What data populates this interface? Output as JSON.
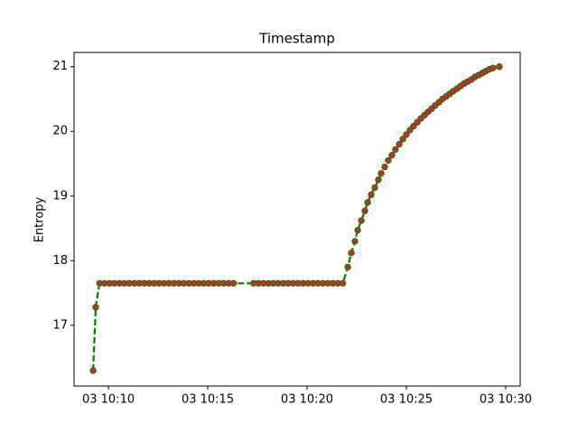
{
  "chart_data": {
    "type": "line",
    "title": "Timestamp",
    "y_label": "Entropy",
    "x": [
      9.23,
      9.36,
      9.55,
      9.8,
      10.05,
      10.3,
      10.55,
      10.8,
      11.05,
      11.3,
      11.55,
      11.8,
      12.05,
      12.3,
      12.55,
      12.8,
      13.05,
      13.3,
      13.55,
      13.8,
      14.05,
      14.3,
      14.55,
      14.8,
      15.05,
      15.3,
      15.55,
      15.8,
      16.05,
      16.3,
      17.3,
      17.55,
      17.8,
      18.05,
      18.3,
      18.55,
      18.8,
      19.05,
      19.3,
      19.55,
      19.8,
      20.05,
      20.3,
      20.55,
      20.8,
      21.05,
      21.3,
      21.55,
      21.8,
      22.05,
      22.23,
      22.41,
      22.55,
      22.73,
      22.91,
      23.05,
      23.23,
      23.41,
      23.59,
      23.73,
      23.91,
      24.09,
      24.27,
      24.45,
      24.64,
      24.82,
      25.0,
      25.18,
      25.36,
      25.55,
      25.73,
      25.91,
      26.09,
      26.27,
      26.45,
      26.64,
      26.82,
      27.0,
      27.18,
      27.36,
      27.55,
      27.73,
      27.91,
      28.09,
      28.27,
      28.45,
      28.64,
      28.82,
      29.0,
      29.18,
      29.36,
      29.68
    ],
    "values": [
      16.3,
      17.28,
      17.65,
      17.65,
      17.65,
      17.65,
      17.65,
      17.65,
      17.65,
      17.65,
      17.65,
      17.65,
      17.65,
      17.65,
      17.65,
      17.65,
      17.65,
      17.65,
      17.65,
      17.65,
      17.65,
      17.65,
      17.65,
      17.65,
      17.65,
      17.65,
      17.65,
      17.65,
      17.65,
      17.65,
      17.65,
      17.65,
      17.65,
      17.65,
      17.65,
      17.65,
      17.65,
      17.65,
      17.65,
      17.65,
      17.65,
      17.65,
      17.65,
      17.65,
      17.65,
      17.65,
      17.65,
      17.65,
      17.65,
      17.9,
      18.12,
      18.3,
      18.47,
      18.62,
      18.77,
      18.9,
      19.02,
      19.13,
      19.25,
      19.35,
      19.45,
      19.55,
      19.63,
      19.72,
      19.8,
      19.88,
      19.95,
      20.02,
      20.08,
      20.14,
      20.2,
      20.25,
      20.3,
      20.35,
      20.4,
      20.45,
      20.5,
      20.54,
      20.58,
      20.62,
      20.66,
      20.7,
      20.74,
      20.77,
      20.8,
      20.84,
      20.87,
      20.9,
      20.93,
      20.96,
      20.98,
      21.0
    ],
    "line_color": "#008000",
    "line_style": "dashed",
    "marker_color": "#d62728",
    "xlim": [
      8.27,
      30.73
    ],
    "xticks": [
      {
        "value": 10,
        "label": "03 10:10"
      },
      {
        "value": 15,
        "label": "03 10:15"
      },
      {
        "value": 20,
        "label": "03 10:20"
      },
      {
        "value": 25,
        "label": "03 10:25"
      },
      {
        "value": 30,
        "label": "03 10:30"
      }
    ],
    "ylim": [
      16.06,
      21.22
    ],
    "yticks": [
      17,
      18,
      19,
      20,
      21
    ]
  }
}
